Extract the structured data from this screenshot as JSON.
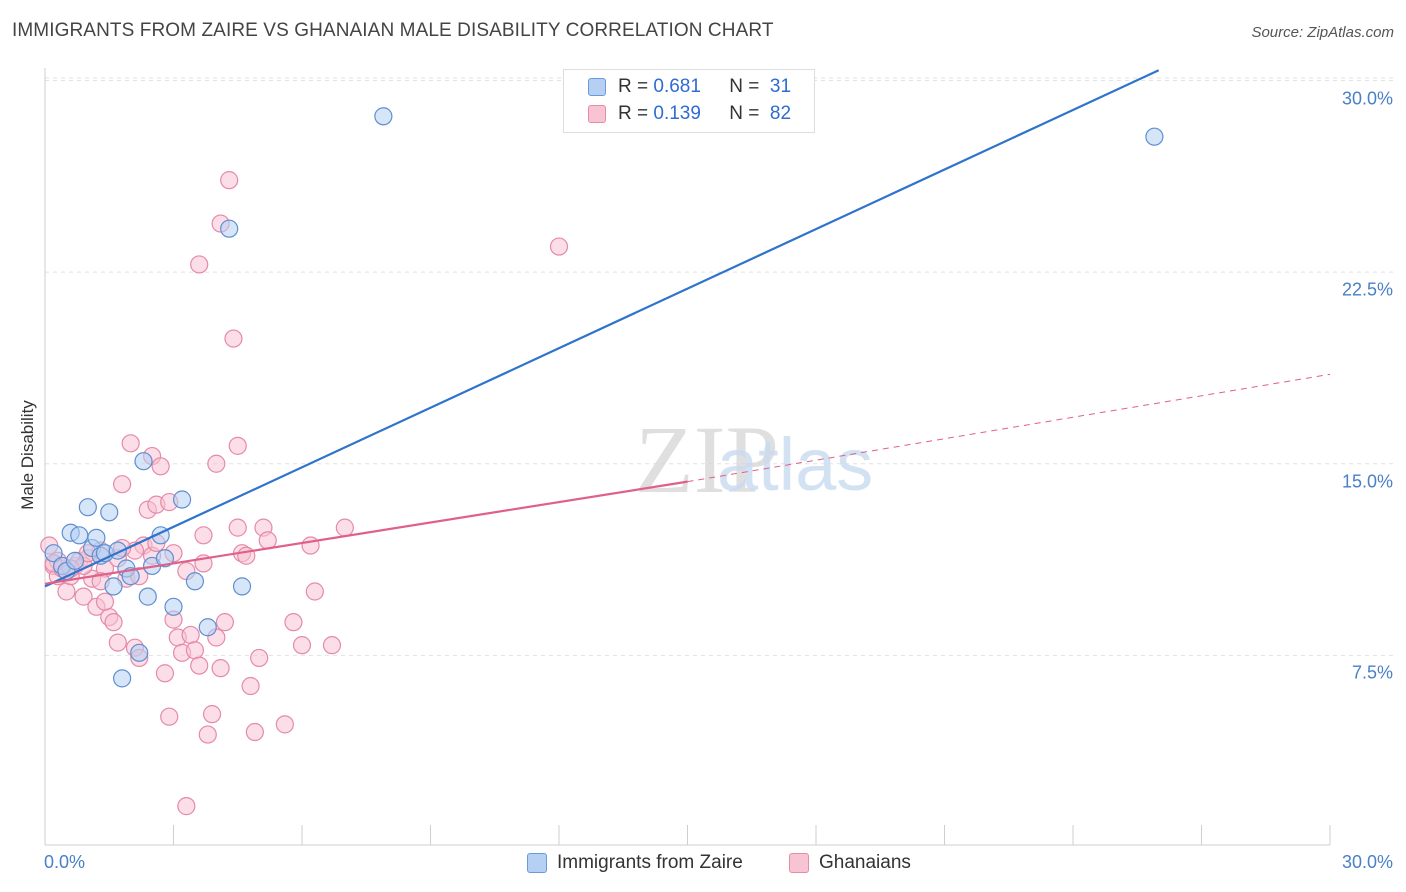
{
  "title": "IMMIGRANTS FROM ZAIRE VS GHANAIAN MALE DISABILITY CORRELATION CHART",
  "source": "Source: ZipAtlas.com",
  "watermark": {
    "zip": "ZIP",
    "atlas": "atlas"
  },
  "legend_top": [
    {
      "r_label": "R =",
      "r_value": "0.681",
      "n_label": "N =",
      "n_value": "31",
      "color": "#a8c8f0"
    },
    {
      "r_label": "R =",
      "r_value": "0.139",
      "n_label": "N =",
      "n_value": "82",
      "color": "#f5b8cc"
    }
  ],
  "chart_data": {
    "type": "scatter",
    "title": "IMMIGRANTS FROM ZAIRE VS GHANAIAN MALE DISABILITY CORRELATION CHART",
    "xlabel": "",
    "ylabel": "Male Disability",
    "xlim": [
      0,
      30
    ],
    "ylim": [
      0,
      30
    ],
    "x_tick_labels": [
      "0.0%",
      "30.0%"
    ],
    "y_ticks": [
      7.5,
      15.0,
      22.5,
      30.0
    ],
    "y_tick_labels": [
      "7.5%",
      "15.0%",
      "22.5%",
      "30.0%"
    ],
    "grid": true,
    "legend_position": "top-center",
    "colors": {
      "zaire": "#2e73cc",
      "ghana": "#e0608a",
      "zaire_fill": "#b5d0f2",
      "ghana_fill": "#f8c3d3"
    },
    "series": [
      {
        "name": "Immigrants from Zaire",
        "x": [
          0.2,
          0.4,
          0.5,
          0.6,
          0.7,
          0.8,
          1.0,
          1.1,
          1.2,
          1.3,
          1.4,
          1.5,
          1.6,
          1.7,
          1.8,
          1.9,
          2.0,
          2.2,
          2.3,
          2.4,
          2.5,
          2.7,
          2.8,
          3.0,
          3.2,
          3.5,
          3.8,
          4.3,
          4.6,
          7.9,
          25.9
        ],
        "y": [
          11.5,
          11.0,
          10.8,
          12.3,
          11.2,
          12.2,
          13.3,
          11.7,
          12.1,
          11.4,
          11.5,
          13.1,
          10.2,
          11.6,
          6.6,
          10.9,
          10.6,
          7.6,
          15.1,
          9.8,
          11.0,
          12.2,
          11.3,
          9.4,
          13.6,
          10.4,
          8.6,
          24.2,
          10.2,
          28.6,
          27.8
        ],
        "trend": {
          "x": [
            0,
            26.0
          ],
          "y": [
            10.2,
            30.4
          ]
        }
      },
      {
        "name": "Ghanaians",
        "x": [
          0.1,
          0.2,
          0.3,
          0.4,
          0.5,
          0.6,
          0.7,
          0.8,
          0.9,
          1.0,
          1.1,
          1.2,
          1.3,
          1.4,
          1.5,
          1.6,
          1.7,
          1.8,
          1.9,
          2.0,
          2.1,
          2.2,
          2.3,
          2.4,
          2.5,
          2.6,
          2.7,
          2.8,
          2.9,
          3.0,
          3.1,
          3.2,
          3.3,
          3.4,
          3.5,
          3.6,
          3.7,
          3.8,
          3.9,
          4.0,
          4.1,
          4.2,
          4.3,
          4.4,
          4.5,
          4.6,
          4.7,
          4.8,
          4.9,
          5.0,
          5.1,
          5.2,
          5.6,
          5.8,
          6.0,
          6.2,
          6.3,
          6.7,
          7.0,
          12.0,
          0.3,
          0.5,
          0.9,
          1.3,
          1.7,
          2.1,
          2.5,
          2.9,
          3.3,
          3.7,
          4.1,
          4.5,
          0.2,
          0.6,
          1.0,
          1.4,
          1.8,
          2.2,
          2.6,
          3.0,
          3.6,
          4.0
        ],
        "y": [
          11.8,
          11.0,
          10.6,
          10.9,
          10.0,
          10.6,
          11.0,
          11.2,
          9.8,
          11.3,
          10.5,
          9.4,
          11.6,
          10.9,
          9.0,
          8.8,
          8.0,
          14.2,
          10.5,
          15.8,
          7.8,
          7.4,
          11.8,
          13.2,
          15.3,
          13.4,
          14.9,
          6.8,
          5.1,
          8.9,
          8.2,
          7.6,
          1.6,
          8.3,
          7.7,
          22.8,
          11.1,
          4.4,
          5.2,
          15.0,
          24.4,
          8.8,
          26.1,
          19.9,
          15.7,
          11.5,
          11.4,
          6.3,
          4.5,
          7.4,
          12.5,
          12.0,
          4.8,
          8.8,
          7.9,
          11.8,
          10.0,
          7.9,
          12.5,
          23.5,
          11.2,
          10.8,
          11.0,
          10.4,
          11.3,
          11.6,
          11.4,
          13.5,
          10.8,
          12.2,
          7.0,
          12.5,
          11.1,
          10.9,
          11.5,
          9.6,
          11.7,
          10.6,
          11.9,
          11.5,
          7.1,
          8.2
        ],
        "trend": {
          "x": [
            0,
            15.0
          ],
          "y": [
            10.3,
            14.3
          ]
        },
        "trend_dashed": {
          "x": [
            15.0,
            30.0
          ],
          "y": [
            14.3,
            18.5
          ]
        }
      }
    ]
  },
  "legend_bottom": [
    {
      "label": "Immigrants from Zaire",
      "color": "#a8c8f0"
    },
    {
      "label": "Ghanaians",
      "color": "#f5b8cc"
    }
  ]
}
